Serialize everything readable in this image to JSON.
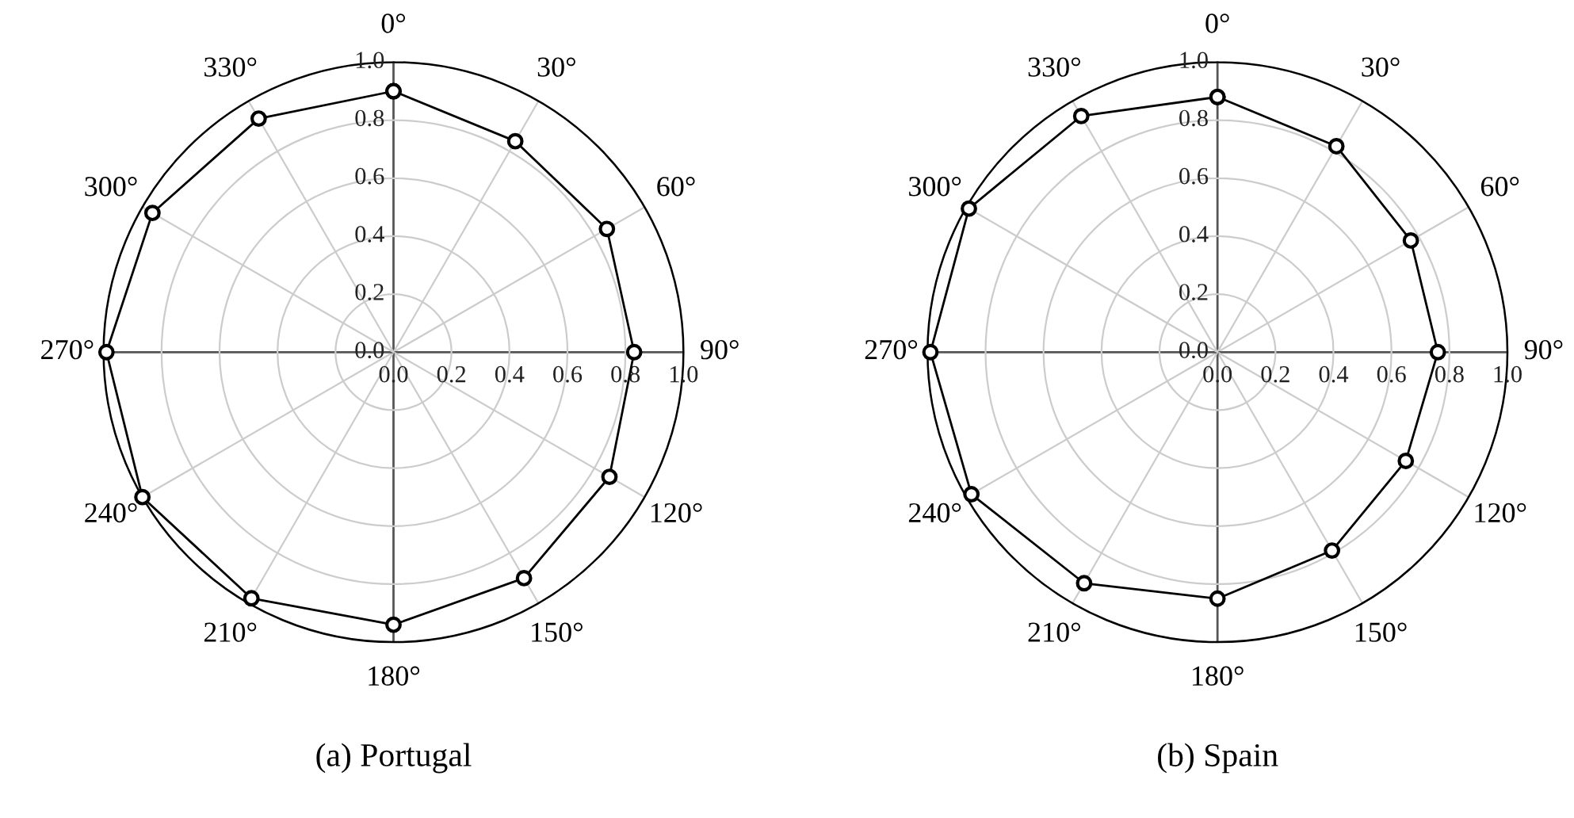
{
  "chart_data": [
    {
      "type": "radar",
      "title": "(a) Portugal",
      "categories": [
        "0°",
        "30°",
        "60°",
        "90°",
        "120°",
        "150°",
        "180°",
        "210°",
        "240°",
        "270°",
        "300°",
        "330°"
      ],
      "series": [
        {
          "color": "#000000",
          "values": [
            0.9,
            0.84,
            0.85,
            0.83,
            0.86,
            0.9,
            0.94,
            0.98,
            1.0,
            0.99,
            0.96,
            0.93
          ]
        }
      ],
      "ylim": [
        0,
        1
      ],
      "yticks": [
        {
          "value": 0,
          "label": "0.0"
        },
        {
          "value": 0.2,
          "label": "0.2"
        },
        {
          "value": 0.4,
          "label": "0.4"
        },
        {
          "value": 0.6,
          "label": "0.6"
        },
        {
          "value": 0.8,
          "label": "0.8"
        },
        {
          "value": 1,
          "label": "1.0"
        }
      ],
      "marker": "circle",
      "line_style": "solid",
      "grid": true,
      "legend": false
    },
    {
      "type": "radar",
      "title": "(b) Spain",
      "categories": [
        "0°",
        "30°",
        "60°",
        "90°",
        "120°",
        "150°",
        "180°",
        "210°",
        "240°",
        "270°",
        "300°",
        "330°"
      ],
      "series": [
        {
          "color": "#000000",
          "values": [
            0.88,
            0.82,
            0.77,
            0.76,
            0.75,
            0.79,
            0.85,
            0.92,
            0.98,
            0.99,
            0.99,
            0.94
          ]
        }
      ],
      "ylim": [
        0,
        1
      ],
      "yticks": [
        {
          "value": 0,
          "label": "0.0"
        },
        {
          "value": 0.2,
          "label": "0.2"
        },
        {
          "value": 0.4,
          "label": "0.4"
        },
        {
          "value": 0.6,
          "label": "0.6"
        },
        {
          "value": 0.8,
          "label": "0.8"
        },
        {
          "value": 1,
          "label": "1.0"
        }
      ],
      "marker": "circle",
      "line_style": "solid",
      "grid": true,
      "legend": false
    }
  ]
}
